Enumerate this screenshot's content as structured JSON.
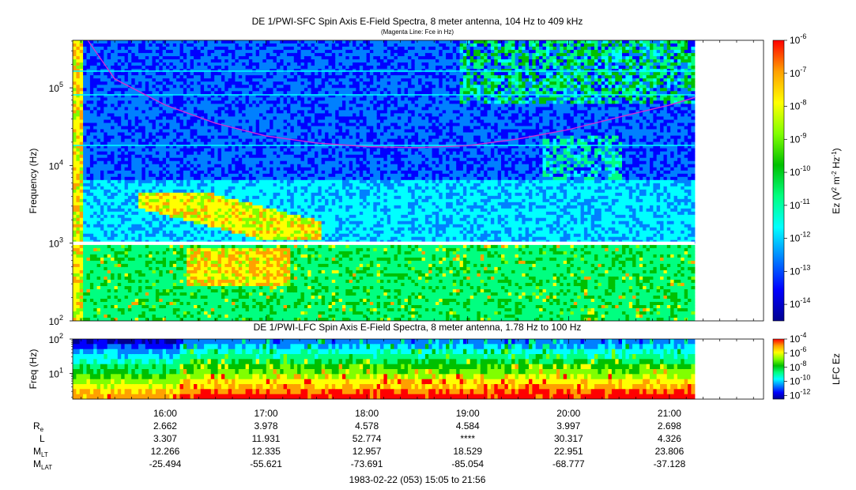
{
  "header": {
    "title": "DE 1/PWI-SFC  Spin Axis E-Field Spectra, 8 meter antenna, 104 Hz to 409 kHz",
    "subtitle": "(Magenta Line: Fce in Hz)"
  },
  "colors": {
    "magenta_line": "#d42cd4",
    "fill_gap": "#ffffff",
    "colormap": [
      "#000090",
      "#0000ff",
      "#0080ff",
      "#00ffff",
      "#00ff80",
      "#00c000",
      "#80ff00",
      "#ffff00",
      "#ffa000",
      "#ff0000"
    ]
  },
  "chart_data": [
    {
      "type": "heatmap",
      "title": "DE 1/PWI-SFC  Spin Axis E-Field Spectra, 8 meter antenna, 104 Hz to 409 kHz",
      "subtitle": "(Magenta Line: Fce in Hz)",
      "ylabel": "Frequency (Hz)",
      "yscale": "log",
      "ylim": [
        100,
        409000
      ],
      "xlim": [
        "15:05",
        "21:56"
      ],
      "yticks": [
        {
          "base": "10",
          "exp": "2",
          "value": 100
        },
        {
          "base": "10",
          "exp": "3",
          "value": 1000
        },
        {
          "base": "10",
          "exp": "4",
          "value": 10000
        },
        {
          "base": "10",
          "exp": "5",
          "value": 100000
        }
      ],
      "data_end_time": "21:15",
      "fce_line": {
        "name": "Fce in Hz",
        "points": [
          {
            "time": "15:14",
            "freq": 409000
          },
          {
            "time": "15:30",
            "freq": 130000
          },
          {
            "time": "16:00",
            "freq": 60000
          },
          {
            "time": "16:30",
            "freq": 35000
          },
          {
            "time": "17:00",
            "freq": 24000
          },
          {
            "time": "17:30",
            "freq": 19500
          },
          {
            "time": "18:00",
            "freq": 17500
          },
          {
            "time": "18:30",
            "freq": 17000
          },
          {
            "time": "19:00",
            "freq": 18000
          },
          {
            "time": "19:30",
            "freq": 22000
          },
          {
            "time": "20:00",
            "freq": 29000
          },
          {
            "time": "20:30",
            "freq": 42000
          },
          {
            "time": "21:00",
            "freq": 60000
          },
          {
            "time": "21:15",
            "freq": 75000
          }
        ]
      },
      "colorbar": {
        "label_prefix": "Ez (V",
        "label_sup1": "2",
        "label_mid": " m",
        "label_sup2": "-2",
        "label_mid2": " Hz",
        "label_sup3": "-1",
        "label_suffix": ")",
        "ticks": [
          {
            "base": "10",
            "exp": "-6"
          },
          {
            "base": "10",
            "exp": "-7"
          },
          {
            "base": "10",
            "exp": "-8"
          },
          {
            "base": "10",
            "exp": "-9"
          },
          {
            "base": "10",
            "exp": "-10"
          },
          {
            "base": "10",
            "exp": "-11"
          },
          {
            "base": "10",
            "exp": "-12"
          },
          {
            "base": "10",
            "exp": "-13"
          },
          {
            "base": "10",
            "exp": "-14"
          }
        ],
        "range_exp": [
          -14.5,
          -6
        ]
      }
    },
    {
      "type": "heatmap",
      "title": "DE 1/PWI-LFC  Spin Axis E-Field Spectra, 8 meter antenna, 1.78 Hz to 100 Hz",
      "ylabel": "Freq (Hz)",
      "yscale": "log",
      "ylim": [
        1.78,
        100
      ],
      "yticks": [
        {
          "base": "10",
          "exp": "2",
          "value": 100
        },
        {
          "base": "10",
          "exp": "1",
          "value": 10
        }
      ],
      "colorbar": {
        "label": "LFC Ez",
        "ticks": [
          {
            "base": "10",
            "exp": "-4"
          },
          {
            "base": "10",
            "exp": "-6"
          },
          {
            "base": "10",
            "exp": "-8"
          },
          {
            "base": "10",
            "exp": "-10"
          },
          {
            "base": "10",
            "exp": "-12"
          }
        ],
        "range_exp": [
          -12.5,
          -4
        ]
      }
    },
    {
      "type": "table",
      "x": [
        "16:00",
        "17:00",
        "18:00",
        "19:00",
        "20:00",
        "21:00"
      ],
      "rows": [
        {
          "label": "R",
          "sub": "e",
          "values": [
            "2.662",
            "3.978",
            "4.578",
            "4.584",
            "3.997",
            "2.698"
          ]
        },
        {
          "label": "L",
          "sub": "",
          "values": [
            "3.307",
            "11.931",
            "52.774",
            "****",
            "30.317",
            "4.326"
          ]
        },
        {
          "label": "M",
          "sub": "LT",
          "values": [
            "12.266",
            "12.335",
            "12.957",
            "18.529",
            "22.951",
            "23.806"
          ]
        },
        {
          "label": "M",
          "sub": "LAT",
          "values": [
            "-25.494",
            "-55.621",
            "-73.691",
            "-85.054",
            "-68.777",
            "-37.128"
          ]
        }
      ],
      "footer": "1983-02-22 (053) 15:05 to 21:56"
    }
  ]
}
